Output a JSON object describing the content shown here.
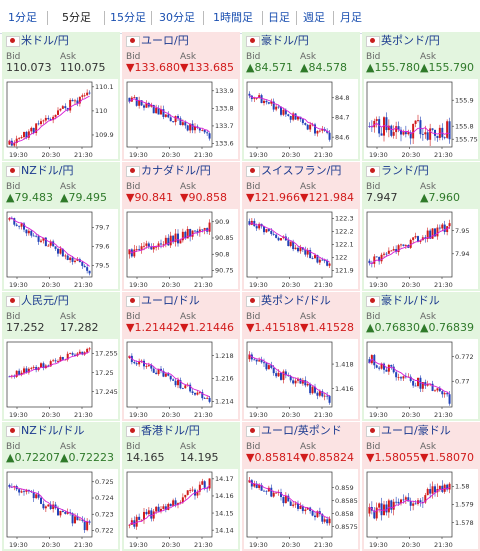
{
  "tabs": [
    "1分足",
    "5分足",
    "15分足",
    "30分足",
    "1時間足",
    "日足",
    "週足",
    "月足"
  ],
  "active_tab": 1,
  "colors": {
    "up_bg": "#e3f5df",
    "down_bg": "#fbe3e3",
    "bull": "#d11b1b",
    "bear": "#2142b8",
    "ma": "#d61fd6",
    "link": "#1a4fb0"
  },
  "panels": [
    {
      "name": "米ドル/円",
      "flag": "us-flag-icon",
      "dir": "flat",
      "bid_label": "Bid",
      "ask_label": "Ask",
      "bid": "110.073",
      "ask": "110.075",
      "yticks": [
        "110.1",
        "110",
        "109.9"
      ],
      "xticks": [
        "19:30",
        "20:30",
        "21:30"
      ],
      "chart_data": {
        "type": "candlestick",
        "start": 109.86,
        "end": 110.08,
        "ymin": 109.85,
        "ymax": 110.12,
        "trend": "up",
        "vol": 0.018,
        "seed": 11,
        "ma": true
      }
    },
    {
      "name": "ユーロ/円",
      "flag": "eu-flag-icon",
      "dir": "down",
      "bid_label": "Bid",
      "ask_label": "Ask",
      "bid": "▼133.680",
      "ask": "▼133.685",
      "yticks": [
        "133.9",
        "133.8",
        "133.7",
        "133.6"
      ],
      "xticks": [
        "19:30",
        "20:30",
        "21:30"
      ],
      "chart_data": {
        "type": "candlestick",
        "start": 133.86,
        "end": 133.64,
        "ymin": 133.58,
        "ymax": 133.95,
        "trend": "down",
        "vol": 0.025,
        "seed": 22,
        "ma": true
      }
    },
    {
      "name": "豪ドル/円",
      "flag": "au-flag-icon",
      "dir": "up",
      "bid_label": "Bid",
      "ask_label": "Ask",
      "bid": "▲84.571",
      "ask": "▲84.578",
      "yticks": [
        "84.8",
        "84.7",
        "84.6"
      ],
      "xticks": [
        "19:30",
        "20:30",
        "21:30"
      ],
      "chart_data": {
        "type": "candlestick",
        "start": 84.82,
        "end": 84.6,
        "ymin": 84.55,
        "ymax": 84.88,
        "trend": "down",
        "vol": 0.02,
        "seed": 33,
        "ma": true
      }
    },
    {
      "name": "英ポンド/円",
      "flag": "gb-flag-icon",
      "dir": "up",
      "bid_label": "Bid",
      "ask_label": "Ask",
      "bid": "▲155.780",
      "ask": "▲155.790",
      "yticks": [
        "155.9",
        "155.8",
        "155.75"
      ],
      "xticks": [
        "19:30",
        "20:30",
        "21:30"
      ],
      "chart_data": {
        "type": "candlestick",
        "start": 155.8,
        "end": 155.78,
        "ymin": 155.72,
        "ymax": 155.97,
        "trend": "flat",
        "vol": 0.035,
        "seed": 44,
        "ma": true
      }
    },
    {
      "name": "NZドル/円",
      "flag": "nz-flag-icon",
      "dir": "up",
      "bid_label": "Bid",
      "ask_label": "Ask",
      "bid": "▲79.483",
      "ask": "▲79.495",
      "yticks": [
        "79.7",
        "79.6",
        "79.5"
      ],
      "xticks": [
        "19:30",
        "20:30",
        "21:30"
      ],
      "chart_data": {
        "type": "candlestick",
        "start": 79.74,
        "end": 79.48,
        "ymin": 79.44,
        "ymax": 79.78,
        "trend": "down",
        "vol": 0.02,
        "seed": 55,
        "ma": true
      }
    },
    {
      "name": "カナダドル/円",
      "flag": "ca-flag-icon",
      "dir": "down",
      "bid_label": "Bid",
      "ask_label": "Ask",
      "bid": "▼90.841",
      "ask": "▼90.858",
      "yticks": [
        "90.9",
        "90.85",
        "90.8",
        "90.75"
      ],
      "xticks": [
        "19:30",
        "20:30",
        "21:30"
      ],
      "chart_data": {
        "type": "candlestick",
        "start": 90.8,
        "end": 90.88,
        "ymin": 90.73,
        "ymax": 90.93,
        "trend": "up",
        "vol": 0.018,
        "seed": 66,
        "ma": true
      }
    },
    {
      "name": "スイスフラン/円",
      "flag": "ch-flag-icon",
      "dir": "down",
      "bid_label": "Bid",
      "ask_label": "Ask",
      "bid": "▼121.966",
      "ask": "▼121.984",
      "yticks": [
        "122.3",
        "122.2",
        "122.1",
        "122",
        "121.9"
      ],
      "xticks": [
        "19:30",
        "20:30",
        "21:30"
      ],
      "chart_data": {
        "type": "candlestick",
        "start": 122.28,
        "end": 121.93,
        "ymin": 121.85,
        "ymax": 122.35,
        "trend": "down",
        "vol": 0.03,
        "seed": 77,
        "ma": true
      }
    },
    {
      "name": "ランド/円",
      "flag": "za-flag-icon",
      "dir": "up",
      "bid_label": "Bid",
      "ask_label": "Ask",
      "bid": "7.947",
      "ask": "▲7.960",
      "yticks": [
        "7.95",
        "7.94"
      ],
      "xticks": [
        "19:30",
        "20:30",
        "21:30"
      ],
      "chart_data": {
        "type": "candlestick",
        "start": 7.937,
        "end": 7.952,
        "ymin": 7.93,
        "ymax": 7.958,
        "trend": "up",
        "vol": 0.002,
        "seed": 88,
        "ma": true
      }
    },
    {
      "name": "人民元/円",
      "flag": "cn-flag-icon",
      "dir": "flat",
      "bid_label": "Bid",
      "ask_label": "Ask",
      "bid": "17.252",
      "ask": "17.282",
      "yticks": [
        "17.255",
        "17.25",
        "17.245"
      ],
      "xticks": [
        "19:30",
        "20:30",
        "21:30"
      ],
      "chart_data": {
        "type": "candlestick",
        "start": 17.249,
        "end": 17.256,
        "ymin": 17.241,
        "ymax": 17.258,
        "trend": "up",
        "vol": 0.0008,
        "seed": 99,
        "ma": true
      }
    },
    {
      "name": "ユーロ/ドル",
      "flag": "eu-flag-icon",
      "dir": "down",
      "bid_label": "Bid",
      "ask_label": "Ask",
      "bid": "▼1.21442",
      "ask": "▼1.21446",
      "yticks": [
        "1.218",
        "1.216",
        "1.214"
      ],
      "xticks": [
        "19:30",
        "20:30",
        "21:30"
      ],
      "chart_data": {
        "type": "candlestick",
        "start": 1.2178,
        "end": 1.2142,
        "ymin": 1.2135,
        "ymax": 1.2192,
        "trend": "down",
        "vol": 0.00035,
        "seed": 12,
        "ma": true
      }
    },
    {
      "name": "英ポンド/ドル",
      "flag": "gb-flag-icon",
      "dir": "down",
      "bid_label": "Bid",
      "ask_label": "Ask",
      "bid": "▼1.41518",
      "ask": "▼1.41528",
      "yticks": [
        "1.418",
        "1.416"
      ],
      "xticks": [
        "19:30",
        "20:30",
        "21:30"
      ],
      "chart_data": {
        "type": "candlestick",
        "start": 1.4184,
        "end": 1.4152,
        "ymin": 1.4145,
        "ymax": 1.4198,
        "trend": "down",
        "vol": 0.0004,
        "seed": 23,
        "ma": true
      }
    },
    {
      "name": "豪ドル/ドル",
      "flag": "au-flag-icon",
      "dir": "up",
      "bid_label": "Bid",
      "ask_label": "Ask",
      "bid": "▲0.76830",
      "ask": "▲0.76839",
      "yticks": [
        "0.772",
        "0.77"
      ],
      "xticks": [
        "19:30",
        "20:30",
        "21:30"
      ],
      "chart_data": {
        "type": "candlestick",
        "start": 0.7718,
        "end": 0.7686,
        "ymin": 0.7679,
        "ymax": 0.7732,
        "trend": "down",
        "vol": 0.0004,
        "seed": 34,
        "ma": true
      }
    },
    {
      "name": "NZドル/ドル",
      "flag": "nz-flag-icon",
      "dir": "up",
      "bid_label": "Bid",
      "ask_label": "Ask",
      "bid": "▲0.72207",
      "ask": "▲0.72223",
      "yticks": [
        "0.725",
        "0.724",
        "0.723",
        "0.722"
      ],
      "xticks": [
        "19:30",
        "20:30",
        "21:30"
      ],
      "chart_data": {
        "type": "candlestick",
        "start": 0.7248,
        "end": 0.7222,
        "ymin": 0.7216,
        "ymax": 0.7256,
        "trend": "down",
        "vol": 0.0003,
        "seed": 45,
        "ma": true
      }
    },
    {
      "name": "香港ドル/円",
      "flag": "hk-flag-icon",
      "dir": "flat",
      "bid_label": "Bid",
      "ask_label": "Ask",
      "bid": "14.165",
      "ask": "14.195",
      "yticks": [
        "14.17",
        "14.16",
        "14.15",
        "14.14"
      ],
      "xticks": [
        "19:30",
        "20:30",
        "21:30"
      ],
      "chart_data": {
        "type": "candlestick",
        "start": 14.143,
        "end": 14.168,
        "ymin": 14.136,
        "ymax": 14.174,
        "trend": "up",
        "vol": 0.003,
        "seed": 56,
        "ma": true
      }
    },
    {
      "name": "ユーロ/英ポンド",
      "flag": "eu-flag-icon",
      "dir": "down",
      "bid_label": "Bid",
      "ask_label": "Ask",
      "bid": "▼0.85814",
      "ask": "▼0.85824",
      "yticks": [
        "0.859",
        "0.8585",
        "0.858",
        "0.8575"
      ],
      "xticks": [
        "19:30",
        "20:30",
        "21:30"
      ],
      "chart_data": {
        "type": "candlestick",
        "start": 0.8592,
        "end": 0.8577,
        "ymin": 0.8571,
        "ymax": 0.8596,
        "trend": "down",
        "vol": 0.00018,
        "seed": 67,
        "ma": true
      }
    },
    {
      "name": "ユーロ/豪ドル",
      "flag": "eu-flag-icon",
      "dir": "down",
      "bid_label": "Bid",
      "ask_label": "Ask",
      "bid": "▼1.58055",
      "ask": "▼1.58070",
      "yticks": [
        "1.58",
        "1.579",
        "1.578"
      ],
      "xticks": [
        "19:30",
        "20:30",
        "21:30"
      ],
      "chart_data": {
        "type": "candlestick",
        "start": 1.5785,
        "end": 1.58,
        "ymin": 1.5772,
        "ymax": 1.5808,
        "trend": "up",
        "vol": 0.0004,
        "seed": 78,
        "ma": true
      }
    }
  ]
}
